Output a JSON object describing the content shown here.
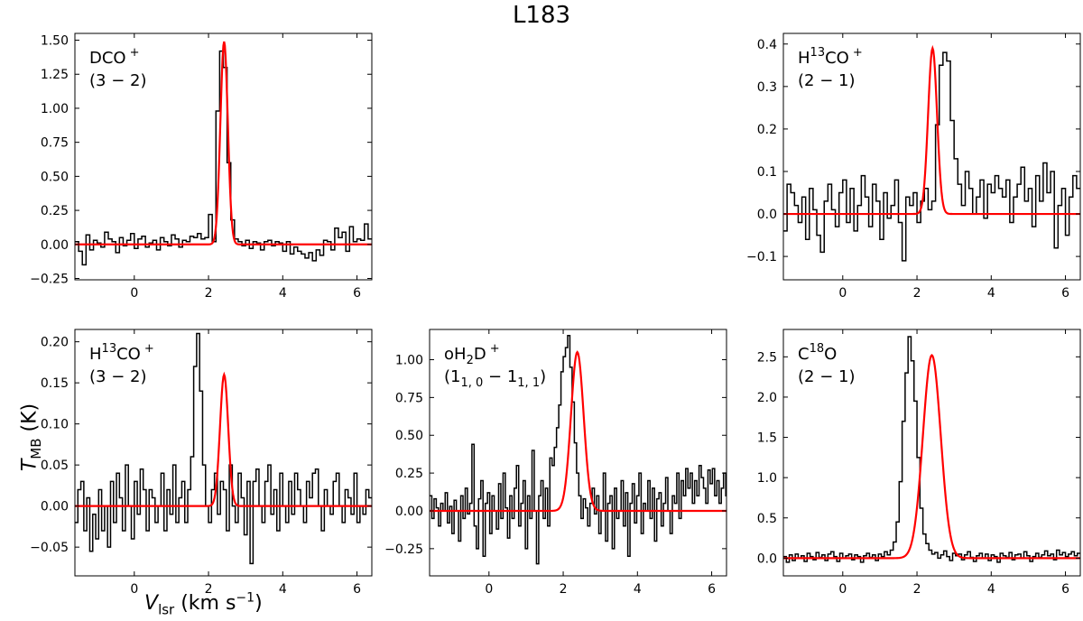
{
  "figure": {
    "title": "L183",
    "ylabel_main": "T",
    "ylabel_sub": "MB",
    "ylabel_unit": " (K)",
    "xlabel_main": "V",
    "xlabel_sub": "lsr",
    "xlabel_unit": " (km s",
    "xlabel_exp": "−1",
    "xlabel_close": ")"
  },
  "colors": {
    "data": "#000000",
    "fit": "#ff0000"
  },
  "chart_data": [
    {
      "type": "line",
      "line1_pre": "DCO",
      "line1_sup": "+",
      "line1_post": "",
      "line2": "(3 − 2)",
      "xlim": [
        -1.6,
        6.4
      ],
      "ylim": [
        -0.26,
        1.55
      ],
      "xticks": [
        0,
        2,
        4,
        6
      ],
      "xtick_labels": [
        "0",
        "2",
        "4",
        "6"
      ],
      "yticks": [
        -0.25,
        0,
        0.25,
        0.5,
        0.75,
        1.0,
        1.25,
        1.5
      ],
      "ytick_labels": [
        "−0.25",
        "0.00",
        "0.25",
        "0.50",
        "0.75",
        "1.00",
        "1.25",
        "1.50"
      ],
      "series": [
        {
          "name": "observed",
          "step": 0.1,
          "x_start": -1.6,
          "values": [
            0.02,
            -0.05,
            -0.15,
            0.07,
            -0.04,
            0.03,
            0.01,
            -0.02,
            0.09,
            0.04,
            0.02,
            -0.06,
            0.05,
            -0.01,
            0.03,
            0.08,
            -0.03,
            0.04,
            0.06,
            -0.02,
            0.01,
            0.03,
            -0.04,
            0.05,
            0.02,
            -0.01,
            0.07,
            0.04,
            -0.02,
            0.03,
            0.02,
            0.06,
            0.05,
            0.08,
            0.04,
            0.05,
            0.22,
            0.02,
            0.98,
            1.42,
            1.3,
            0.6,
            0.18,
            0.04,
            0.02,
            -0.01,
            0.03,
            -0.03,
            0.02,
            0.01,
            -0.04,
            0.02,
            0.03,
            -0.01,
            0.02,
            0.01,
            -0.05,
            0.02,
            -0.07,
            -0.02,
            -0.05,
            -0.07,
            -0.1,
            -0.06,
            -0.12,
            -0.04,
            -0.08,
            0.03,
            0.02,
            -0.04,
            0.12,
            0.05,
            0.09,
            -0.05,
            0.13,
            0.02,
            0.04,
            0.03,
            0.15,
            0.04
          ]
        },
        {
          "name": "fit",
          "center": 2.42,
          "sigma": 0.1,
          "amplitude": 1.49
        }
      ]
    },
    {
      "type": "line",
      "line1_pre": "H",
      "line1_sup_pre": "13",
      "line1_mid": "CO",
      "line1_sup": "+",
      "line2": "(2 − 1)",
      "xlim": [
        -1.6,
        6.4
      ],
      "ylim": [
        -0.155,
        0.425
      ],
      "xticks": [
        0,
        2,
        4,
        6
      ],
      "xtick_labels": [
        "0",
        "2",
        "4",
        "6"
      ],
      "yticks": [
        -0.1,
        0,
        0.1,
        0.2,
        0.3,
        0.4
      ],
      "ytick_labels": [
        "−0.1",
        "0.0",
        "0.1",
        "0.2",
        "0.3",
        "0.4"
      ],
      "series": [
        {
          "name": "observed",
          "step": 0.1,
          "x_start": -1.6,
          "values": [
            -0.04,
            0.07,
            0.05,
            0.02,
            -0.02,
            0.04,
            -0.06,
            0.06,
            0.01,
            -0.05,
            -0.09,
            0.03,
            0.07,
            0.01,
            -0.03,
            0.05,
            0.08,
            -0.02,
            0.06,
            -0.04,
            0.02,
            0.09,
            0.04,
            -0.03,
            0.07,
            0.03,
            -0.06,
            0.05,
            -0.01,
            0.02,
            0.08,
            -0.02,
            -0.11,
            0.04,
            0.02,
            0.05,
            -0.02,
            0.03,
            0.06,
            0.01,
            0.03,
            0.21,
            0.35,
            0.38,
            0.36,
            0.22,
            0.13,
            0.07,
            0.02,
            0.1,
            0.06,
            0.0,
            0.04,
            0.08,
            -0.01,
            0.07,
            0.05,
            0.09,
            0.06,
            0.04,
            0.08,
            -0.02,
            0.04,
            0.07,
            0.11,
            0.03,
            0.06,
            -0.03,
            0.09,
            0.03,
            0.12,
            0.05,
            0.1,
            -0.08,
            0.02,
            0.06,
            -0.05,
            0.04,
            0.09,
            0.06
          ]
        },
        {
          "name": "fit",
          "center": 2.42,
          "sigma": 0.12,
          "amplitude": 0.39
        }
      ]
    },
    {
      "type": "line",
      "line1_pre": "H",
      "line1_sup_pre": "13",
      "line1_mid": "CO",
      "line1_sup": "+",
      "line2": "(3 − 2)",
      "xlim": [
        -1.6,
        6.4
      ],
      "ylim": [
        -0.085,
        0.215
      ],
      "xticks": [
        0,
        2,
        4,
        6
      ],
      "xtick_labels": [
        "0",
        "2",
        "4",
        "6"
      ],
      "yticks": [
        -0.05,
        0,
        0.05,
        0.1,
        0.15,
        0.2
      ],
      "ytick_labels": [
        "−0.05",
        "0.00",
        "0.05",
        "0.10",
        "0.15",
        "0.20"
      ],
      "series": [
        {
          "name": "observed",
          "step": 0.08,
          "x_start": -1.6,
          "values": [
            -0.02,
            0.02,
            0.03,
            -0.03,
            0.01,
            -0.055,
            -0.01,
            -0.04,
            0.02,
            -0.03,
            0.0,
            -0.05,
            0.03,
            -0.02,
            0.04,
            0.01,
            -0.03,
            0.05,
            0.0,
            -0.04,
            0.03,
            -0.01,
            0.045,
            0.02,
            -0.03,
            0.02,
            0.01,
            -0.02,
            0.0,
            0.04,
            -0.03,
            0.02,
            -0.01,
            0.05,
            -0.02,
            0.01,
            0.03,
            -0.02,
            0.02,
            0.06,
            0.17,
            0.21,
            0.14,
            0.05,
            0.0,
            -0.02,
            0.02,
            0.04,
            -0.01,
            0.03,
            0.02,
            -0.03,
            0.05,
            0.0,
            -0.02,
            0.04,
            0.01,
            -0.035,
            0.03,
            -0.07,
            0.03,
            0.045,
            0.0,
            -0.02,
            0.03,
            0.05,
            -0.01,
            0.02,
            -0.03,
            0.04,
            0.0,
            -0.02,
            0.03,
            -0.01,
            0.04,
            0.02,
            0.0,
            -0.02,
            0.03,
            0.01,
            0.04,
            0.045,
            0.0,
            -0.03,
            0.02,
            0.0,
            -0.01,
            0.03,
            0.04,
            0.0,
            -0.02,
            0.02,
            0.01,
            -0.01,
            0.04,
            -0.02,
            0.0,
            -0.01,
            0.02,
            0.01
          ]
        },
        {
          "name": "fit",
          "center": 2.42,
          "sigma": 0.11,
          "amplitude": 0.16
        }
      ]
    },
    {
      "type": "line",
      "line1_pre": "oH",
      "line1_sub": "2",
      "line1_mid": "D",
      "line1_sup": "+",
      "line2_pre": "(1",
      "line2_sub1": "1, 0",
      "line2_mid": " − 1",
      "line2_sub2": "1, 1",
      "line2_post": ")",
      "xlim": [
        -1.6,
        6.4
      ],
      "ylim": [
        -0.43,
        1.2
      ],
      "xticks": [
        0,
        2,
        4,
        6
      ],
      "xtick_labels": [
        "0",
        "2",
        "4",
        "6"
      ],
      "yticks": [
        -0.25,
        0,
        0.25,
        0.5,
        0.75,
        1.0
      ],
      "ytick_labels": [
        "−0.25",
        "0.00",
        "0.25",
        "0.50",
        "0.75",
        "1.00"
      ],
      "series": [
        {
          "name": "observed",
          "step": 0.06,
          "x_start": -1.6,
          "values": [
            0.1,
            -0.05,
            0.08,
            0.02,
            -0.1,
            0.05,
            0.0,
            0.12,
            -0.08,
            0.03,
            -0.15,
            0.07,
            0.0,
            -0.2,
            0.1,
            -0.05,
            0.15,
            -0.02,
            0.05,
            0.44,
            -0.1,
            -0.25,
            0.08,
            0.2,
            -0.3,
            0.05,
            0.12,
            -0.15,
            0.1,
            0.0,
            -0.12,
            0.18,
            -0.05,
            0.25,
            0.02,
            -0.18,
            0.1,
            -0.05,
            0.15,
            0.3,
            -0.1,
            0.05,
            0.2,
            -0.25,
            0.1,
            -0.05,
            0.4,
            0.0,
            -0.35,
            0.1,
            0.2,
            -0.05,
            0.15,
            -0.1,
            0.35,
            0.3,
            0.42,
            0.55,
            0.7,
            0.92,
            1.02,
            1.08,
            1.16,
            0.95,
            0.72,
            0.45,
            0.25,
            0.1,
            -0.05,
            0.08,
            0.02,
            -0.1,
            0.05,
            0.15,
            -0.02,
            0.1,
            -0.15,
            0.0,
            0.25,
            -0.2,
            0.05,
            0.1,
            -0.25,
            0.15,
            -0.05,
            0.0,
            0.2,
            -0.1,
            0.12,
            -0.3,
            0.05,
            0.18,
            -0.08,
            0.1,
            0.25,
            -0.15,
            0.05,
            0.0,
            0.2,
            -0.05,
            0.15,
            -0.2,
            0.08,
            0.12,
            -0.1,
            0.05,
            0.22,
            0.0,
            -0.15,
            0.1,
            0.05,
            0.25,
            -0.05,
            0.2,
            0.1,
            0.28,
            0.15,
            0.25,
            0.05,
            0.2,
            0.1,
            0.3,
            0.22,
            0.15,
            0.05,
            0.27,
            0.18,
            0.28,
            0.1,
            0.2,
            0.05,
            0.15,
            0.25,
            0.1
          ]
        },
        {
          "name": "fit",
          "center": 2.38,
          "sigma": 0.17,
          "amplitude": 1.05
        }
      ]
    },
    {
      "type": "line",
      "line1_pre": "C",
      "line1_sup_pre": "18",
      "line1_mid": "O",
      "line1_sup": "",
      "line2": "(2 − 1)",
      "xlim": [
        -1.6,
        6.4
      ],
      "ylim": [
        -0.22,
        2.84
      ],
      "xticks": [
        0,
        2,
        4,
        6
      ],
      "xtick_labels": [
        "0",
        "2",
        "4",
        "6"
      ],
      "yticks": [
        0,
        0.5,
        1.0,
        1.5,
        2.0,
        2.5
      ],
      "ytick_labels": [
        "0.0",
        "0.5",
        "1.0",
        "1.5",
        "2.0",
        "2.5"
      ],
      "series": [
        {
          "name": "observed",
          "step": 0.08,
          "x_start": -1.6,
          "values": [
            0.02,
            -0.05,
            0.04,
            -0.03,
            0.05,
            0.0,
            0.03,
            -0.04,
            0.06,
            0.02,
            -0.02,
            0.07,
            0.01,
            0.04,
            -0.03,
            0.05,
            0.08,
            0.02,
            -0.04,
            0.06,
            0.0,
            0.03,
            0.05,
            -0.02,
            0.04,
            0.02,
            -0.05,
            0.03,
            0.06,
            0.01,
            0.04,
            -0.03,
            0.05,
            0.02,
            0.08,
            0.04,
            0.1,
            0.2,
            0.45,
            0.95,
            1.7,
            2.3,
            2.75,
            2.45,
            1.95,
            1.25,
            0.62,
            0.3,
            0.18,
            0.1,
            0.05,
            0.07,
            0.0,
            0.04,
            0.09,
            0.02,
            -0.03,
            0.06,
            0.03,
            0.05,
            -0.02,
            0.04,
            0.08,
            0.01,
            -0.04,
            0.03,
            0.06,
            0.0,
            0.05,
            -0.03,
            0.04,
            0.02,
            -0.05,
            0.06,
            0.03,
            0.01,
            0.07,
            -0.02,
            0.04,
            0.05,
            0.0,
            0.08,
            0.03,
            -0.04,
            0.02,
            0.06,
            0.01,
            0.04,
            0.09,
            0.03,
            0.05,
            -0.02,
            0.1,
            0.04,
            0.07,
            0.02,
            0.05,
            0.08,
            0.03,
            0.06
          ]
        },
        {
          "name": "fit",
          "center": 2.4,
          "sigma": 0.24,
          "amplitude": 2.52
        }
      ]
    }
  ]
}
